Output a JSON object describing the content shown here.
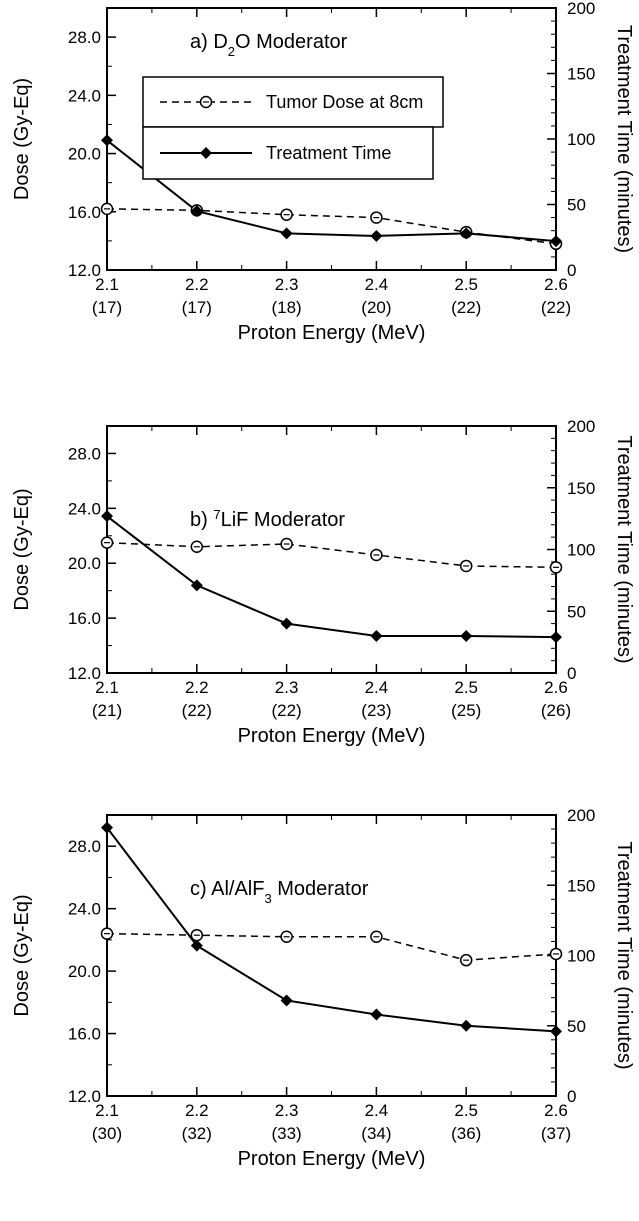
{
  "chart_data": [
    {
      "type": "line",
      "title": "a) D",
      "title_sub": "2",
      "title_rest": "O Moderator",
      "categories": [
        "2.1",
        "2.2",
        "2.3",
        "2.4",
        "2.5",
        "2.6"
      ],
      "categories_secondary": [
        "(17)",
        "(17)",
        "(18)",
        "(20)",
        "(22)",
        "(22)"
      ],
      "xlabel": "Proton Energy (MeV)",
      "ylabel": "Dose (Gy-Eq)",
      "ylabel_right": "Treatment Time (minutes)",
      "ylim": [
        12,
        30
      ],
      "yticks": [
        "12.0",
        "16.0",
        "20.0",
        "24.0",
        "28.0"
      ],
      "ylim_right": [
        0,
        200
      ],
      "yticks_right": [
        "0",
        "50",
        "100",
        "150",
        "200"
      ],
      "legend": [
        {
          "label": "Tumor Dose at 8cm"
        },
        {
          "label": "Treatment Time"
        }
      ],
      "series": [
        {
          "axis": "left",
          "style": "dashed-open-circle",
          "values": [
            16.2,
            16.1,
            15.8,
            15.6,
            14.6,
            13.8
          ]
        },
        {
          "axis": "right",
          "style": "solid-filled-diamond",
          "values": [
            99,
            45,
            28,
            26,
            28,
            22
          ]
        }
      ]
    },
    {
      "type": "line",
      "title": "b) ",
      "title_sup": "7",
      "title_rest": "LiF Moderator",
      "categories": [
        "2.1",
        "2.2",
        "2.3",
        "2.4",
        "2.5",
        "2.6"
      ],
      "categories_secondary": [
        "(21)",
        "(22)",
        "(22)",
        "(23)",
        "(25)",
        "(26)"
      ],
      "xlabel": "Proton Energy (MeV)",
      "ylabel": "Dose (Gy-Eq)",
      "ylabel_right": "Treatment Time (minutes)",
      "ylim": [
        12,
        30
      ],
      "yticks": [
        "12.0",
        "16.0",
        "20.0",
        "24.0",
        "28.0"
      ],
      "ylim_right": [
        0,
        200
      ],
      "yticks_right": [
        "0",
        "50",
        "100",
        "150",
        "200"
      ],
      "series": [
        {
          "axis": "left",
          "style": "dashed-open-circle",
          "values": [
            21.5,
            21.2,
            21.4,
            20.6,
            19.8,
            19.7
          ]
        },
        {
          "axis": "right",
          "style": "solid-filled-diamond",
          "values": [
            127,
            71,
            40,
            30,
            30,
            29
          ]
        }
      ]
    },
    {
      "type": "line",
      "title": "c) Al/AlF",
      "title_sub": "3",
      "title_rest": " Moderator",
      "categories": [
        "2.1",
        "2.2",
        "2.3",
        "2.4",
        "2.5",
        "2.6"
      ],
      "categories_secondary": [
        "(30)",
        "(32)",
        "(33)",
        "(34)",
        "(36)",
        "(37)"
      ],
      "xlabel": "Proton Energy (MeV)",
      "ylabel": "Dose (Gy-Eq)",
      "ylabel_right": "Treatment Time (minutes)",
      "ylim": [
        12,
        30
      ],
      "yticks": [
        "12.0",
        "16.0",
        "20.0",
        "24.0",
        "28.0"
      ],
      "ylim_right": [
        0,
        200
      ],
      "yticks_right": [
        "0",
        "50",
        "100",
        "150",
        "200"
      ],
      "series": [
        {
          "axis": "left",
          "style": "dashed-open-circle",
          "values": [
            22.4,
            22.3,
            22.2,
            22.2,
            20.7,
            21.1
          ]
        },
        {
          "axis": "right",
          "style": "solid-filled-diamond",
          "values": [
            191,
            107,
            68,
            58,
            50,
            46
          ]
        }
      ]
    }
  ]
}
